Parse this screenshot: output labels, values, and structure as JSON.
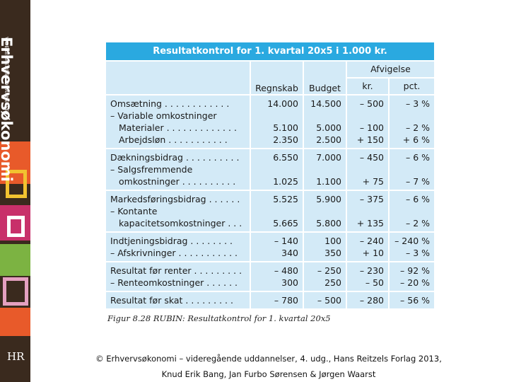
{
  "sidebar": {
    "brand": "Erhvervsøkonomi",
    "subtitle": "VIDEREGÅENDE UDDANNELSER",
    "logo": "HR"
  },
  "table": {
    "title": "Resultatkontrol for 1. kvartal 20x5 i 1.000 kr.",
    "group_header": "Afvigelse",
    "columns": [
      "Regnskab",
      "Budget",
      "kr.",
      "pct."
    ],
    "groups": [
      [
        {
          "label": "Omsætning . . . . . . . . . . . .",
          "cells": [
            "14.000",
            "14.500",
            "– 500",
            "– 3 %"
          ]
        },
        {
          "label": "– Variable omkostninger",
          "cells": [
            null,
            null,
            null,
            null
          ]
        },
        {
          "label": "Materialer . . . . . . . . . . . . .",
          "cells": [
            "5.100",
            "5.000",
            "– 100",
            "– 2 %"
          ]
        },
        {
          "label": "Arbejdsløn . . . . . . . . . . .",
          "cells": [
            "2.350",
            "2.500",
            "+ 150",
            "+ 6 %"
          ]
        }
      ],
      [
        {
          "label": "Dækningsbidrag . . . . . . . . . .",
          "cells": [
            "6.550",
            "7.000",
            "– 450",
            "– 6 %"
          ]
        },
        {
          "label": "– Salgsfremmende",
          "cells": [
            null,
            null,
            null,
            null
          ]
        },
        {
          "label": "omkostninger . . . . . . . . . .",
          "cells": [
            "1.025",
            "1.100",
            "+ 75",
            "– 7 %"
          ]
        }
      ],
      [
        {
          "label": "Markedsføringsbidrag . . . . . .",
          "cells": [
            "5.525",
            "5.900",
            "– 375",
            "– 6 %"
          ]
        },
        {
          "label": "– Kontante",
          "cells": [
            null,
            null,
            null,
            null
          ]
        },
        {
          "label": "kapacitetsomkostninger . . .",
          "cells": [
            "5.665",
            "5.800",
            "+ 135",
            "– 2 %"
          ]
        }
      ],
      [
        {
          "label": "Indtjeningsbidrag . . . . . . . .",
          "cells": [
            "– 140",
            "100",
            "– 240",
            "– 240 %"
          ]
        },
        {
          "label": "– Afskrivninger . . . . . . . . . . .",
          "cells": [
            "340",
            "350",
            "+ 10",
            "– 3 %"
          ]
        }
      ],
      [
        {
          "label": "Resultat før renter . . . . . . . . .",
          "cells": [
            "– 480",
            "– 250",
            "– 230",
            "– 92 %"
          ]
        },
        {
          "label": "– Renteomkostninger . . . . . .",
          "cells": [
            "300",
            "250",
            "– 50",
            "– 20 %"
          ]
        }
      ],
      [
        {
          "label": "Resultat før skat . . . . . . . . .",
          "cells": [
            "– 780",
            "– 500",
            "– 280",
            "– 56 %"
          ]
        }
      ]
    ],
    "caption": "Figur 8.28  RUBIN: Resultatkontrol for 1. kvartal 20x5"
  },
  "footer": [
    "© Erhvervsøkonomi – videregående uddannelser, 4. udg., Hans Reitzels Forlag 2013,",
    "Knud Erik Bang, Jan Furbo Sørensen & Jørgen Waarst"
  ]
}
